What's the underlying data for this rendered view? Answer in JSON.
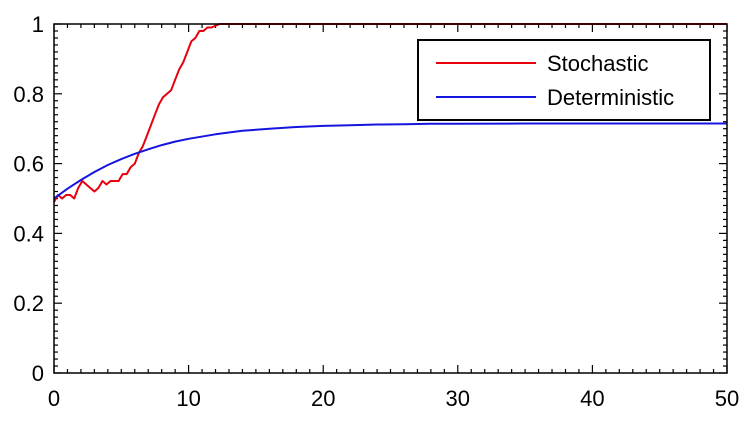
{
  "chart_data": {
    "type": "line",
    "title": "",
    "xlabel": "",
    "ylabel": "",
    "xlim": [
      0,
      50
    ],
    "ylim": [
      0,
      1
    ],
    "x_ticks": [
      0,
      10,
      20,
      30,
      40,
      50
    ],
    "y_ticks": [
      0,
      0.2,
      0.4,
      0.6,
      0.8,
      1
    ],
    "x_tick_labels": [
      "0",
      "10",
      "20",
      "30",
      "40",
      "50"
    ],
    "y_tick_labels": [
      "0",
      "0.2",
      "0.4",
      "0.6",
      "0.8",
      "1"
    ],
    "grid": false,
    "legend_position": "top-right",
    "series": [
      {
        "name": "Stochastic",
        "color": "#e8000b",
        "x": [
          0,
          0.3,
          0.6,
          0.9,
          1.2,
          1.5,
          1.8,
          2.1,
          2.4,
          2.7,
          3.0,
          3.3,
          3.6,
          3.9,
          4.2,
          4.5,
          4.8,
          5.1,
          5.4,
          5.7,
          6.0,
          6.3,
          6.6,
          6.9,
          7.2,
          7.5,
          7.8,
          8.1,
          8.4,
          8.7,
          9.0,
          9.3,
          9.6,
          9.9,
          10.2,
          10.5,
          10.8,
          11.1,
          11.4,
          11.7,
          12.0,
          12.3,
          12.6,
          13.0,
          14.0,
          16.0,
          20.0,
          30.0,
          40.0,
          50.0
        ],
        "values": [
          0.49,
          0.51,
          0.5,
          0.51,
          0.51,
          0.5,
          0.53,
          0.55,
          0.54,
          0.53,
          0.52,
          0.53,
          0.55,
          0.54,
          0.55,
          0.55,
          0.55,
          0.57,
          0.57,
          0.59,
          0.6,
          0.63,
          0.65,
          0.68,
          0.71,
          0.74,
          0.77,
          0.79,
          0.8,
          0.81,
          0.84,
          0.87,
          0.89,
          0.92,
          0.95,
          0.96,
          0.98,
          0.98,
          0.99,
          0.99,
          0.995,
          1.0,
          1.0,
          1.0,
          1.0,
          1.0,
          1.0,
          1.0,
          1.0,
          1.0
        ]
      },
      {
        "name": "Deterministic",
        "color": "#1515e0",
        "x": [
          0,
          1,
          2,
          3,
          4,
          5,
          6,
          7,
          8,
          9,
          10,
          12,
          14,
          16,
          18,
          20,
          22,
          24,
          26,
          28,
          30,
          35,
          40,
          45,
          50
        ],
        "values": [
          0.5,
          0.528,
          0.553,
          0.576,
          0.596,
          0.613,
          0.628,
          0.641,
          0.653,
          0.663,
          0.671,
          0.684,
          0.694,
          0.7,
          0.705,
          0.708,
          0.71,
          0.712,
          0.713,
          0.714,
          0.714,
          0.715,
          0.715,
          0.715,
          0.715
        ]
      }
    ]
  }
}
